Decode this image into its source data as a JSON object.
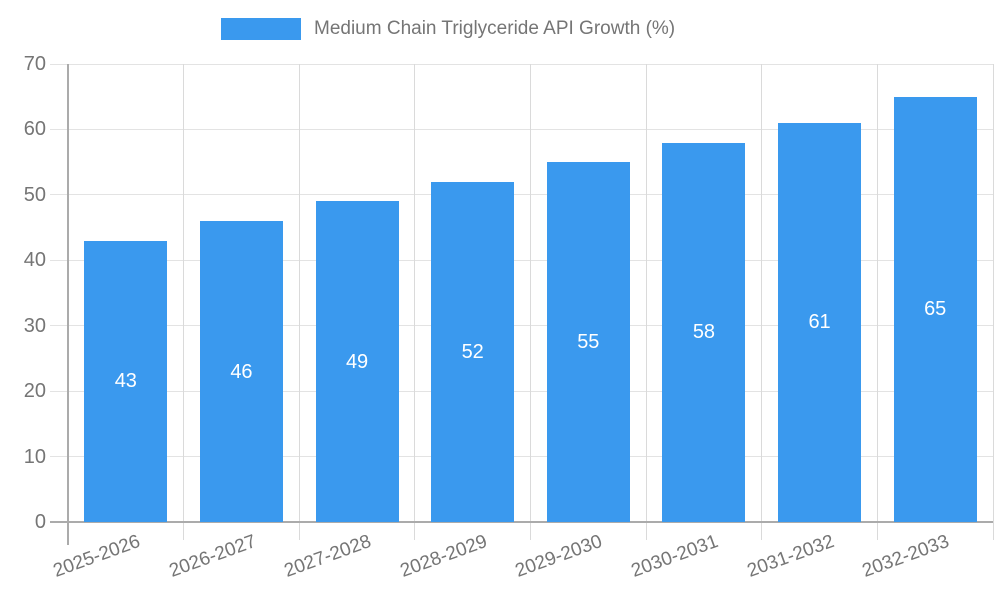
{
  "legend": {
    "label": "Medium Chain Triglyceride API Growth (%)"
  },
  "colors": {
    "bar": "#3a99ee",
    "axis": "#ababab",
    "grid": "#e3e3e3",
    "grid_vertical": "#dadada",
    "text": "#757575",
    "value_label": "#ffffff",
    "background": "#ffffff"
  },
  "chart_data": {
    "type": "bar",
    "title": "Medium Chain Triglyceride API Growth (%)",
    "categories": [
      "2025-2026",
      "2026-2027",
      "2027-2028",
      "2028-2029",
      "2029-2030",
      "2030-2031",
      "2031-2032",
      "2032-2033"
    ],
    "values": [
      43,
      46,
      49,
      52,
      55,
      58,
      61,
      65
    ],
    "xlabel": "",
    "ylabel": "",
    "ylim": [
      0,
      70
    ],
    "yticks": [
      0,
      10,
      20,
      30,
      40,
      50,
      60,
      70
    ],
    "grid": true,
    "legend_position": "top-center",
    "bar_label_position": "inside-center",
    "x_tick_rotation_deg": -20
  }
}
